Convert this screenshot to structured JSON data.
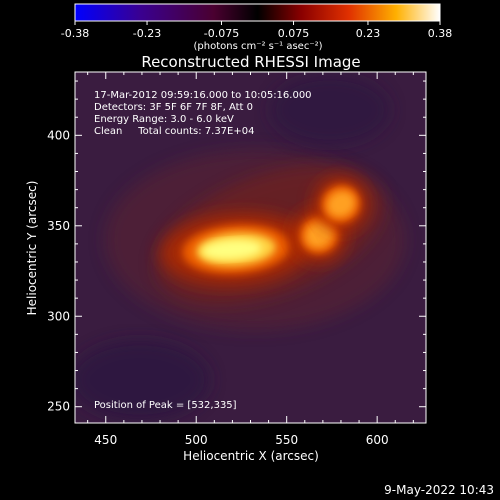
{
  "colorbar": {
    "ticks": [
      "-0.38",
      "-0.23",
      "-0.075",
      "0.075",
      "0.23",
      "0.38"
    ],
    "tick_values": [
      -0.38,
      -0.23,
      -0.075,
      0.075,
      0.23,
      0.38
    ],
    "min": -0.38,
    "max": 0.38,
    "unit_label": "(photons cm⁻² s⁻¹ asec⁻²)"
  },
  "chart_data": {
    "type": "heatmap",
    "title": "Reconstructed RHESSI Image",
    "xlabel": "Heliocentric X (arcsec)",
    "ylabel": "Heliocentric Y (arcsec)",
    "xlim": [
      433,
      627
    ],
    "ylim": [
      241,
      435
    ],
    "xticks": [
      450,
      500,
      550,
      600
    ],
    "yticks": [
      250,
      300,
      350,
      400
    ],
    "annotations": [
      "17-Mar-2012 09:59:16.000 to 10:05:16.000",
      "Detectors: 3F 5F 6F 7F 8F, Att 0",
      "Energy Range: 3.0 - 6.0 keV",
      "Clean     Total counts: 7.37E+04"
    ],
    "peak_label": "Position of Peak = [532,335]",
    "peak": [
      532,
      335
    ],
    "sources": [
      {
        "x": 522,
        "y": 337,
        "amplitude": 0.38
      },
      {
        "x": 568,
        "y": 345,
        "amplitude": 0.22
      },
      {
        "x": 580,
        "y": 362,
        "amplitude": 0.23
      }
    ]
  },
  "footer": {
    "timestamp": "9-May-2022 10:43"
  }
}
